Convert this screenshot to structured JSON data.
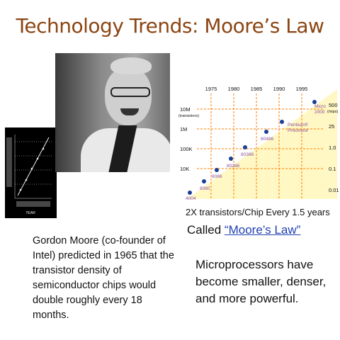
{
  "title": "Technology Trends: Moore’s Law",
  "mini_plot_label": "YEAR",
  "chart_data": {
    "type": "scatter",
    "x_label": "",
    "y_label": "",
    "x_ticks": [
      "1975",
      "1980",
      "1985",
      "1990",
      "1995"
    ],
    "y_ticks_left": [
      "10M",
      "1M",
      "100K",
      "10K"
    ],
    "y_left_unit": "(transistors)",
    "y_ticks_right": [
      "500",
      "25",
      "1.0",
      "0.1",
      "0.01"
    ],
    "y_right_unit": "(mips)",
    "log_scale": true,
    "points": [
      {
        "label": "4004"
      },
      {
        "label": "8080"
      },
      {
        "label": "8086"
      },
      {
        "label": "80286"
      },
      {
        "label": "80386"
      },
      {
        "label": "80486"
      },
      {
        "label": "Pentium®"
      },
      {
        "label": "Micro 2000"
      }
    ],
    "annotation_pentium": [
      "Pentium®",
      "Processor"
    ],
    "annotation_micro": [
      "Micro",
      "2000"
    ],
    "colors": {
      "background": "#fff7c4",
      "line": "#ff7f00",
      "points": "#1c3f94",
      "labels": "#8a4f9e"
    }
  },
  "chart_caption": "2X transistors/Chip Every 1.5 years",
  "called": {
    "prefix": "Called ",
    "link": "“Moore’s Law”"
  },
  "left_paragraph": [
    "Gordon Moore (co-founder of",
    "Intel) predicted in 1965 that the",
    "transistor density of",
    "semiconductor chips would",
    "double roughly every 18 months."
  ],
  "right_paragraph": [
    "Microprocessors have",
    "become smaller, denser,",
    "and more powerful."
  ]
}
